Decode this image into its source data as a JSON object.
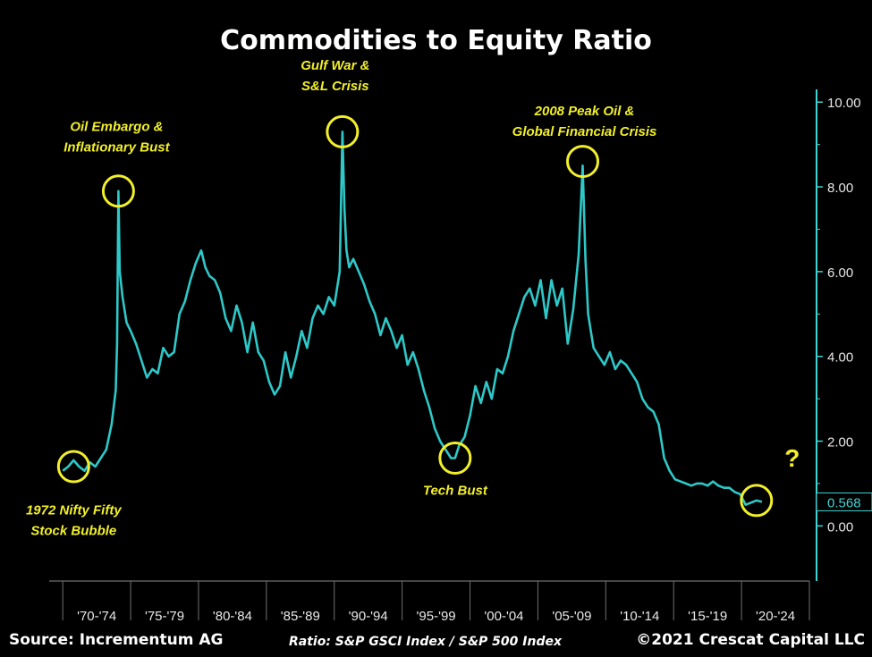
{
  "title": "Commodities to Equity Ratio",
  "footer": {
    "source": "Source: Incrementum AG",
    "ratio": "Ratio: S&P GSCI Index / S&P 500 Index",
    "copyright": "©2021 Crescat Capital LLC"
  },
  "colors": {
    "line": "#2ec8c8",
    "annotation": "#f2ef2a",
    "axis": "#3fd4d4",
    "text": "#ffffff"
  },
  "chart_data": {
    "type": "line",
    "x_tick_labels": [
      "'70-'74",
      "'75-'79",
      "'80-'84",
      "'85-'89",
      "'90-'94",
      "'95-'99",
      "'00-'04",
      "'05-'09",
      "'10-'14",
      "'15-'19",
      "'20-'24"
    ],
    "y_tick_labels": [
      "0.00",
      "2.00",
      "4.00",
      "6.00",
      "8.00",
      "10.00"
    ],
    "ylim": [
      -1.3,
      10.3
    ],
    "xlim": [
      1969,
      2025
    ],
    "last_value_label": "0.568",
    "series": [
      {
        "x": [
          1970.0,
          1970.4,
          1970.8,
          1971.2,
          1971.6,
          1972.0,
          1972.4,
          1972.8,
          1973.2,
          1973.6,
          1973.9,
          1974.0,
          1974.1,
          1974.2,
          1974.4,
          1974.7,
          1975.0,
          1975.4,
          1975.8,
          1976.2,
          1976.6,
          1977.0,
          1977.4,
          1977.8,
          1978.2,
          1978.6,
          1979.0,
          1979.4,
          1979.8,
          1980.2,
          1980.5,
          1980.8,
          1981.2,
          1981.6,
          1982.0,
          1982.4,
          1982.8,
          1983.2,
          1983.6,
          1984.0,
          1984.4,
          1984.8,
          1985.2,
          1985.6,
          1986.0,
          1986.4,
          1986.8,
          1987.2,
          1987.6,
          1988.0,
          1988.4,
          1988.8,
          1989.2,
          1989.6,
          1990.0,
          1990.4,
          1990.6,
          1990.75,
          1990.9,
          1991.1,
          1991.4,
          1991.8,
          1992.2,
          1992.6,
          1993.0,
          1993.4,
          1993.8,
          1994.2,
          1994.6,
          1995.0,
          1995.4,
          1995.8,
          1996.2,
          1996.6,
          1997.0,
          1997.4,
          1997.8,
          1998.2,
          1998.6,
          1998.9,
          1999.2,
          1999.6,
          2000.0,
          2000.4,
          2000.8,
          2001.2,
          2001.6,
          2002.0,
          2002.4,
          2002.8,
          2003.2,
          2003.6,
          2004.0,
          2004.4,
          2004.8,
          2005.2,
          2005.6,
          2006.0,
          2006.4,
          2006.8,
          2007.2,
          2007.6,
          2008.0,
          2008.3,
          2008.5,
          2008.7,
          2008.9,
          2009.1,
          2009.5,
          2009.9,
          2010.3,
          2010.7,
          2011.1,
          2011.5,
          2011.9,
          2012.3,
          2012.7,
          2013.1,
          2013.5,
          2013.9,
          2014.3,
          2014.7,
          2015.1,
          2015.5,
          2015.9,
          2016.3,
          2016.7,
          2017.1,
          2017.5,
          2017.9,
          2018.3,
          2018.7,
          2019.1,
          2019.5,
          2019.9,
          2020.3,
          2020.7,
          2021.1,
          2021.5
        ],
        "y": [
          1.3,
          1.4,
          1.55,
          1.4,
          1.3,
          1.5,
          1.4,
          1.6,
          1.8,
          2.4,
          3.2,
          4.3,
          7.9,
          6.0,
          5.4,
          4.8,
          4.6,
          4.3,
          3.9,
          3.5,
          3.7,
          3.6,
          4.2,
          4.0,
          4.1,
          5.0,
          5.3,
          5.8,
          6.2,
          6.5,
          6.1,
          5.9,
          5.8,
          5.5,
          4.9,
          4.6,
          5.2,
          4.8,
          4.1,
          4.8,
          4.1,
          3.9,
          3.4,
          3.1,
          3.3,
          4.1,
          3.5,
          4.0,
          4.6,
          4.2,
          4.9,
          5.2,
          5.0,
          5.4,
          5.2,
          6.0,
          9.3,
          7.5,
          6.5,
          6.1,
          6.3,
          6.0,
          5.7,
          5.3,
          5.0,
          4.5,
          4.9,
          4.6,
          4.2,
          4.5,
          3.8,
          4.1,
          3.7,
          3.2,
          2.8,
          2.3,
          2.0,
          1.8,
          1.6,
          1.6,
          1.9,
          2.1,
          2.6,
          3.3,
          2.9,
          3.4,
          3.0,
          3.7,
          3.6,
          4.0,
          4.6,
          5.0,
          5.4,
          5.6,
          5.2,
          5.8,
          4.9,
          5.8,
          5.2,
          5.6,
          4.3,
          5.1,
          6.4,
          8.5,
          6.3,
          5.0,
          4.6,
          4.2,
          4.0,
          3.8,
          4.1,
          3.7,
          3.9,
          3.8,
          3.6,
          3.4,
          3.0,
          2.8,
          2.7,
          2.4,
          1.6,
          1.3,
          1.1,
          1.05,
          1.0,
          0.95,
          1.0,
          1.0,
          0.95,
          1.05,
          0.95,
          0.9,
          0.9,
          0.8,
          0.75,
          0.5,
          0.55,
          0.6,
          0.568
        ]
      }
    ],
    "annotations": [
      {
        "lines": [
          "1972 Nifty Fifty",
          "Stock Bubble"
        ],
        "x": 1970.8,
        "y": 1.4
      },
      {
        "lines": [
          "Oil Embargo &",
          "Inflationary Bust"
        ],
        "x": 1974.1,
        "y": 7.9
      },
      {
        "lines": [
          "Gulf War &",
          "S&L Crisis"
        ],
        "x": 1990.6,
        "y": 9.3
      },
      {
        "lines": [
          "Tech Bust"
        ],
        "x": 1998.9,
        "y": 1.6
      },
      {
        "lines": [
          "2008 Peak Oil &",
          "Global Financial Crisis"
        ],
        "x": 2008.3,
        "y": 8.6
      },
      {
        "lines": [
          "?"
        ],
        "x": 2021.1,
        "y": 0.6
      }
    ]
  }
}
